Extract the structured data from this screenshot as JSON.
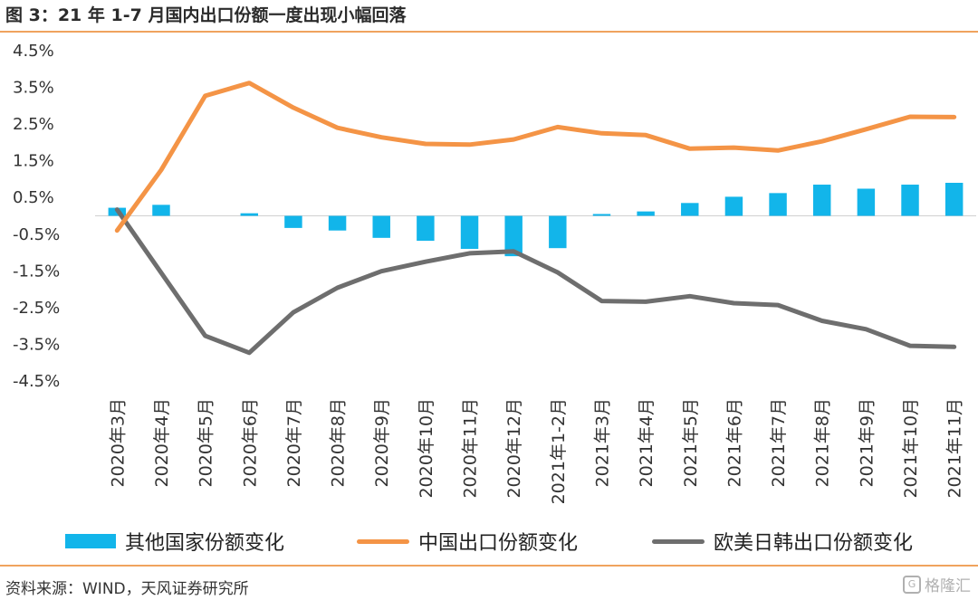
{
  "title": "图 3：21 年 1-7 月国内出口份额一度出现小幅回落",
  "source": "资料来源：WIND，天风证券研究所",
  "watermark": "格隆汇",
  "colors": {
    "bar": "#12b5ea",
    "china": "#f49446",
    "west": "#6e6e6e",
    "rule": "#f0a35e"
  },
  "chart_data": {
    "type": "bar+line",
    "categories": [
      "2020年3月",
      "2020年4月",
      "2020年5月",
      "2020年6月",
      "2020年7月",
      "2020年8月",
      "2020年9月",
      "2020年10月",
      "2020年11月",
      "2020年12月",
      "2021年1-2月",
      "2021年3月",
      "2021年4月",
      "2021年5月",
      "2021年6月",
      "2021年7月",
      "2021年8月",
      "2021年9月",
      "2021年10月",
      "2021年11月"
    ],
    "y_ticks": [
      "4.5%",
      "3.5%",
      "2.5%",
      "1.5%",
      "0.5%",
      "-0.5%",
      "-1.5%",
      "-2.5%",
      "-3.5%",
      "-4.5%"
    ],
    "ylim": [
      -4.5,
      4.5
    ],
    "series": [
      {
        "name": "其他国家份额变化",
        "kind": "bar",
        "values": [
          0.22,
          0.3,
          0.0,
          0.07,
          -0.33,
          -0.4,
          -0.6,
          -0.68,
          -0.9,
          -1.1,
          -0.88,
          0.05,
          0.12,
          0.35,
          0.52,
          0.62,
          0.85,
          0.74,
          0.85,
          0.9
        ]
      },
      {
        "name": "中国出口份额变化",
        "kind": "line",
        "values": [
          -0.4,
          1.25,
          3.27,
          3.62,
          2.95,
          2.4,
          2.14,
          1.96,
          1.94,
          2.08,
          2.42,
          2.25,
          2.2,
          1.83,
          1.86,
          1.78,
          2.03,
          2.36,
          2.7,
          2.69
        ]
      },
      {
        "name": "欧美日韩出口份额变化",
        "kind": "line",
        "values": [
          0.17,
          -1.55,
          -3.27,
          -3.73,
          -2.63,
          -1.96,
          -1.51,
          -1.25,
          -1.02,
          -0.97,
          -1.54,
          -2.32,
          -2.34,
          -2.19,
          -2.38,
          -2.43,
          -2.86,
          -3.09,
          -3.54,
          -3.57
        ]
      }
    ]
  }
}
